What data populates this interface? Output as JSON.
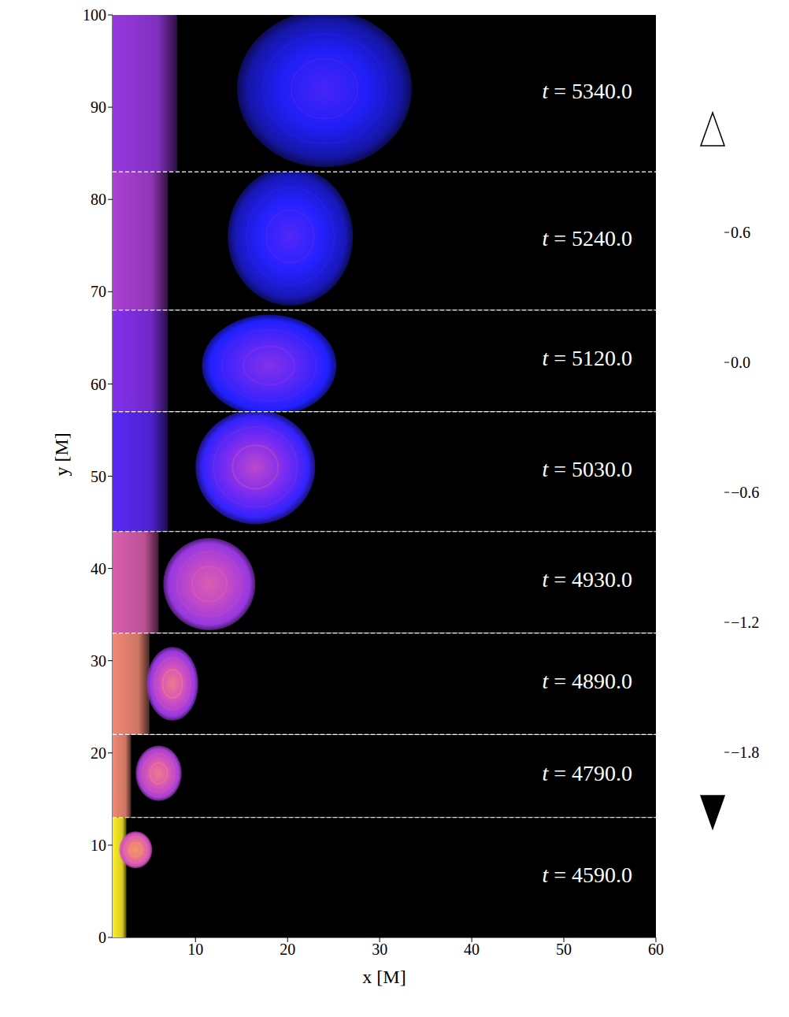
{
  "chart_data": {
    "type": "heatmap",
    "x_label": "x [M]",
    "y_label": "y [M]",
    "xlim": [
      1,
      60
    ],
    "xticks": [
      10,
      20,
      30,
      40,
      50,
      60
    ],
    "ylim": [
      0,
      100
    ],
    "yticks": [
      0,
      10,
      20,
      30,
      40,
      50,
      60,
      70,
      80,
      90,
      100
    ],
    "panels": [
      {
        "label": "t = 5340.0",
        "ymin": 83,
        "ymax": 100,
        "jet": {
          "x_max": 8,
          "value": -0.5
        },
        "vortex": {
          "x": 24,
          "y": 92,
          "rx": 9.5,
          "ry": 8.5,
          "core_value": -0.9,
          "edge_value": -1.35
        }
      },
      {
        "label": "t = 5240.0",
        "ymin": 68,
        "ymax": 83,
        "jet": {
          "x_max": 7,
          "value": -0.4
        },
        "vortex": {
          "x": 20.3,
          "y": 76,
          "rx": 6.8,
          "ry": 7.5,
          "core_value": -0.85,
          "edge_value": -1.3
        }
      },
      {
        "label": "t = 5120.0",
        "ymin": 57,
        "ymax": 68,
        "jet": {
          "x_max": 7,
          "value": -0.6
        },
        "vortex": {
          "x": 18,
          "y": 62,
          "rx": 7.3,
          "ry": 5.5,
          "core_value": -0.6,
          "edge_value": -1.1
        }
      },
      {
        "label": "t = 5030.0",
        "ymin": 44,
        "ymax": 57,
        "jet": {
          "x_max": 7,
          "value": -0.8
        },
        "vortex": {
          "x": 16.5,
          "y": 51,
          "rx": 6.5,
          "ry": 6.2,
          "core_value": -0.3,
          "edge_value": -1.0
        }
      },
      {
        "label": "t = 4930.0",
        "ymin": 33,
        "ymax": 44,
        "jet": {
          "x_max": 6,
          "value": -0.1
        },
        "vortex": {
          "x": 11.5,
          "y": 38.3,
          "rx": 5,
          "ry": 5,
          "core_value": -0.1,
          "edge_value": -0.5
        }
      },
      {
        "label": "t = 4890.0",
        "ymin": 22,
        "ymax": 33,
        "jet": {
          "x_max": 5,
          "value": 0.2
        },
        "vortex": {
          "x": 7.5,
          "y": 27.5,
          "rx": 2.8,
          "ry": 4,
          "core_value": 0.1,
          "edge_value": -0.5
        }
      },
      {
        "label": "t = 4790.0",
        "ymin": 13,
        "ymax": 22,
        "jet": {
          "x_max": 3,
          "value": 0.2
        },
        "vortex": {
          "x": 6,
          "y": 17.8,
          "rx": 2.5,
          "ry": 3,
          "core_value": 0.1,
          "edge_value": -0.4
        }
      },
      {
        "label": "t = 4590.0",
        "ymin": 0,
        "ymax": 13,
        "jet": {
          "x_max": 2.5,
          "value": 0.7
        },
        "vortex": {
          "x": 3.5,
          "y": 9.5,
          "rx": 1.8,
          "ry": 2,
          "core_value": 0.3,
          "edge_value": -0.2
        }
      }
    ],
    "colorbar": {
      "range": [
        -2.0,
        1.0
      ],
      "ticks": [
        {
          "value": -1.8,
          "label": "−1.8"
        },
        {
          "value": -1.2,
          "label": "−1.2"
        },
        {
          "value": -0.6,
          "label": "−0.6"
        },
        {
          "value": 0,
          "label": "0.0"
        },
        0.6
      ]
    }
  }
}
